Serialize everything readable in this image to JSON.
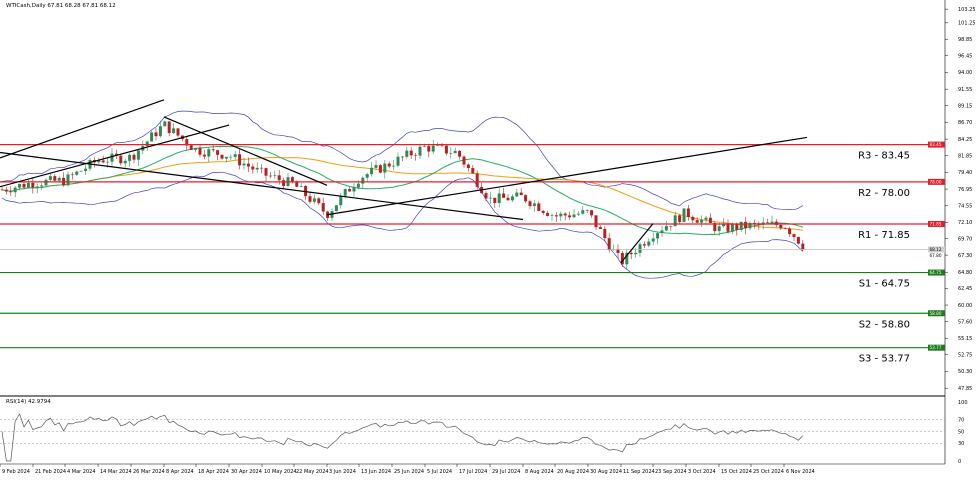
{
  "header": {
    "title": "WTICash,Daily  67.81 68.28 67.81 68.12",
    "rsi_title": "RSI(14) 42.9794"
  },
  "colors": {
    "bull_candle": "#2e8b57",
    "bear_candle": "#b22222",
    "bollinger": "#4040c8",
    "ma_orange": "#f39c12",
    "ma_green": "#27ae60",
    "resistance": "#e0202a",
    "support": "#1e7b1e",
    "current_price": "#bbbbbb",
    "trendline": "#000000",
    "rsi_line": "#555555"
  },
  "chart_data": [
    {
      "type": "candlestick",
      "symbol": "WTICash",
      "timeframe": "Daily",
      "x_labels": [
        "9 Feb 2024",
        "21 Feb 2024",
        "4 Mar 2024",
        "14 Mar 2024",
        "26 Mar 2024",
        "8 Apr 2024",
        "18 Apr 2024",
        "30 Apr 2024",
        "10 May 2024",
        "22 May 2024",
        "3 Jun 2024",
        "13 Jun 2024",
        "25 Jun 2024",
        "5 Jul 2024",
        "17 Jul 2024",
        "29 Jul 2024",
        "8 Aug 2024",
        "20 Aug 2024",
        "30 Aug 2024",
        "11 Sep 2024",
        "23 Sep 2024",
        "3 Oct 2024",
        "15 Oct 2024",
        "25 Oct 2024",
        "6 Nov 2024"
      ],
      "y_ticks": [
        "103.25",
        "101.25",
        "98.85",
        "96.45",
        "94.00",
        "91.55",
        "89.15",
        "86.70",
        "84.25",
        "81.85",
        "79.40",
        "76.95",
        "74.55",
        "72.10",
        "69.70",
        "67.30",
        "64.80",
        "62.45",
        "60.00",
        "57.60",
        "55.15",
        "52.75",
        "50.30",
        "47.85"
      ],
      "ylim": [
        47.0,
        104.0
      ],
      "ohlc_anchor_closes": [
        [
          "9 Feb 2024",
          76.8
        ],
        [
          "21 Feb 2024",
          77.9
        ],
        [
          "4 Mar 2024",
          78.2
        ],
        [
          "14 Mar 2024",
          81.2
        ],
        [
          "26 Mar 2024",
          81.6
        ],
        [
          "8 Apr 2024",
          86.4
        ],
        [
          "18 Apr 2024",
          82.7
        ],
        [
          "30 Apr 2024",
          81.9
        ],
        [
          "10 May 2024",
          79.2
        ],
        [
          "22 May 2024",
          77.6
        ],
        [
          "3 Jun 2024",
          73.3
        ],
        [
          "13 Jun 2024",
          78.6
        ],
        [
          "25 Jun 2024",
          80.8
        ],
        [
          "5 Jul 2024",
          83.1
        ],
        [
          "17 Jul 2024",
          82.3
        ],
        [
          "29 Jul 2024",
          75.4
        ],
        [
          "8 Aug 2024",
          75.8
        ],
        [
          "20 Aug 2024",
          73.0
        ],
        [
          "30 Aug 2024",
          73.5
        ],
        [
          "11 Sep 2024",
          66.2
        ],
        [
          "23 Sep 2024",
          70.5
        ],
        [
          "3 Oct 2024",
          73.5
        ],
        [
          "15 Oct 2024",
          71.1
        ],
        [
          "25 Oct 2024",
          71.6
        ],
        [
          "6 Nov 2024",
          71.8
        ],
        [
          "13 Nov 2024",
          68.12
        ]
      ],
      "current_price": 68.12,
      "current_price_tag": "68.12",
      "current_price_sub": "67.80",
      "levels": [
        {
          "id": "r3",
          "label": "R3 - 83.45",
          "value": 83.45,
          "tag": "83.45",
          "kind": "resistance"
        },
        {
          "id": "r2",
          "label": "R2 - 78.00",
          "value": 78.0,
          "tag": "78.00",
          "kind": "resistance"
        },
        {
          "id": "r1",
          "label": "R1 - 71.85",
          "value": 71.85,
          "tag": "71.85",
          "kind": "resistance"
        },
        {
          "id": "s1",
          "label": "S1 - 64.75",
          "value": 64.75,
          "tag": "64.75",
          "kind": "support"
        },
        {
          "id": "s2",
          "label": "S2 - 58.80",
          "value": 58.8,
          "tag": "58.80",
          "kind": "support"
        },
        {
          "id": "s3",
          "label": "S3 - 53.77",
          "value": 53.77,
          "tag": "53.77",
          "kind": "support"
        }
      ],
      "trendlines": [
        {
          "from": [
            "9 Feb 2024",
            81.5
          ],
          "to": [
            "8 Apr 2024",
            90.0
          ]
        },
        {
          "from": [
            "9 Feb 2024",
            77.3
          ],
          "to": [
            "30 Apr 2024",
            86.3
          ]
        },
        {
          "from": [
            "8 Apr 2024",
            87.5
          ],
          "to": [
            "3 Jun 2024",
            77.5
          ]
        },
        {
          "from": [
            "3 Jun 2024",
            73.2
          ],
          "to": [
            "3 Jul 2024",
            84.5
          ]
        },
        {
          "from": [
            "11 Jul 2024",
            82.3
          ],
          "to": [
            "8 Aug 2024",
            72.5
          ]
        },
        {
          "from": [
            "11 Sep 2024",
            66.2
          ],
          "to": [
            "23 Sep 2024",
            71.9
          ]
        }
      ],
      "indicators": [
        "Bollinger Bands",
        "Moving Average (orange)",
        "Moving Average (green)"
      ]
    },
    {
      "type": "line",
      "name": "RSI(14) 42.9794",
      "value": 42.9794,
      "y_ticks": [
        "100",
        "70",
        "50",
        "30",
        "0"
      ],
      "ylim": [
        0,
        100
      ],
      "levels": [
        70,
        50,
        30
      ]
    }
  ]
}
